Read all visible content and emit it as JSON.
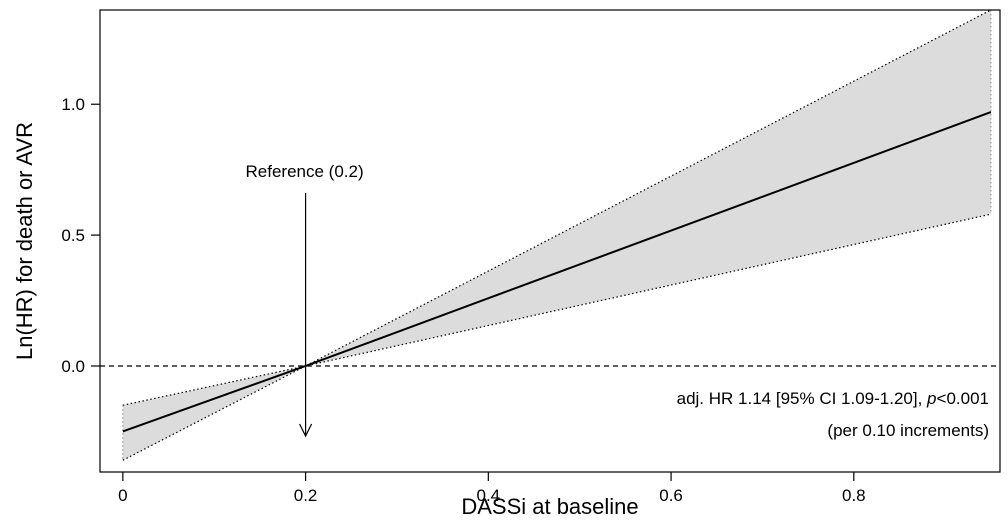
{
  "chart_data": {
    "type": "line",
    "xlabel": "DASSi at baseline",
    "ylabel": "Ln(HR) for death or AVR",
    "xlim": [
      -0.025,
      0.96
    ],
    "ylim": [
      -0.405,
      1.36
    ],
    "x_ticks": [
      {
        "value": 0,
        "label": "0"
      },
      {
        "value": 0.2,
        "label": "0.2"
      },
      {
        "value": 0.4,
        "label": "0.4"
      },
      {
        "value": 0.6,
        "label": "0.6"
      },
      {
        "value": 0.8,
        "label": "0.8"
      }
    ],
    "y_ticks": [
      {
        "value": 0.0,
        "label": "0.0"
      },
      {
        "value": 0.5,
        "label": "0.5"
      },
      {
        "value": 1.0,
        "label": "1.0"
      }
    ],
    "series": [
      {
        "x": [
          0.0,
          0.2,
          0.95
        ],
        "y": [
          -0.25,
          0.0,
          0.97
        ],
        "lower": [
          -0.36,
          0.0,
          0.58
        ],
        "upper": [
          -0.15,
          0.0,
          1.36
        ]
      }
    ],
    "reference_line_y": 0.0,
    "reference": {
      "label": "Reference (0.2)",
      "x": 0.2
    },
    "annotation": {
      "line1_prefix": "adj. HR 1.14 [95% CI 1.09-1.20], ",
      "line1_italic": "p",
      "line1_suffix": "<0.001",
      "line2": "(per 0.10 increments)"
    },
    "colors": {
      "band": "#dcdcdc",
      "line": "#000000",
      "axis": "#000000"
    },
    "grid": false,
    "legend": "none"
  }
}
